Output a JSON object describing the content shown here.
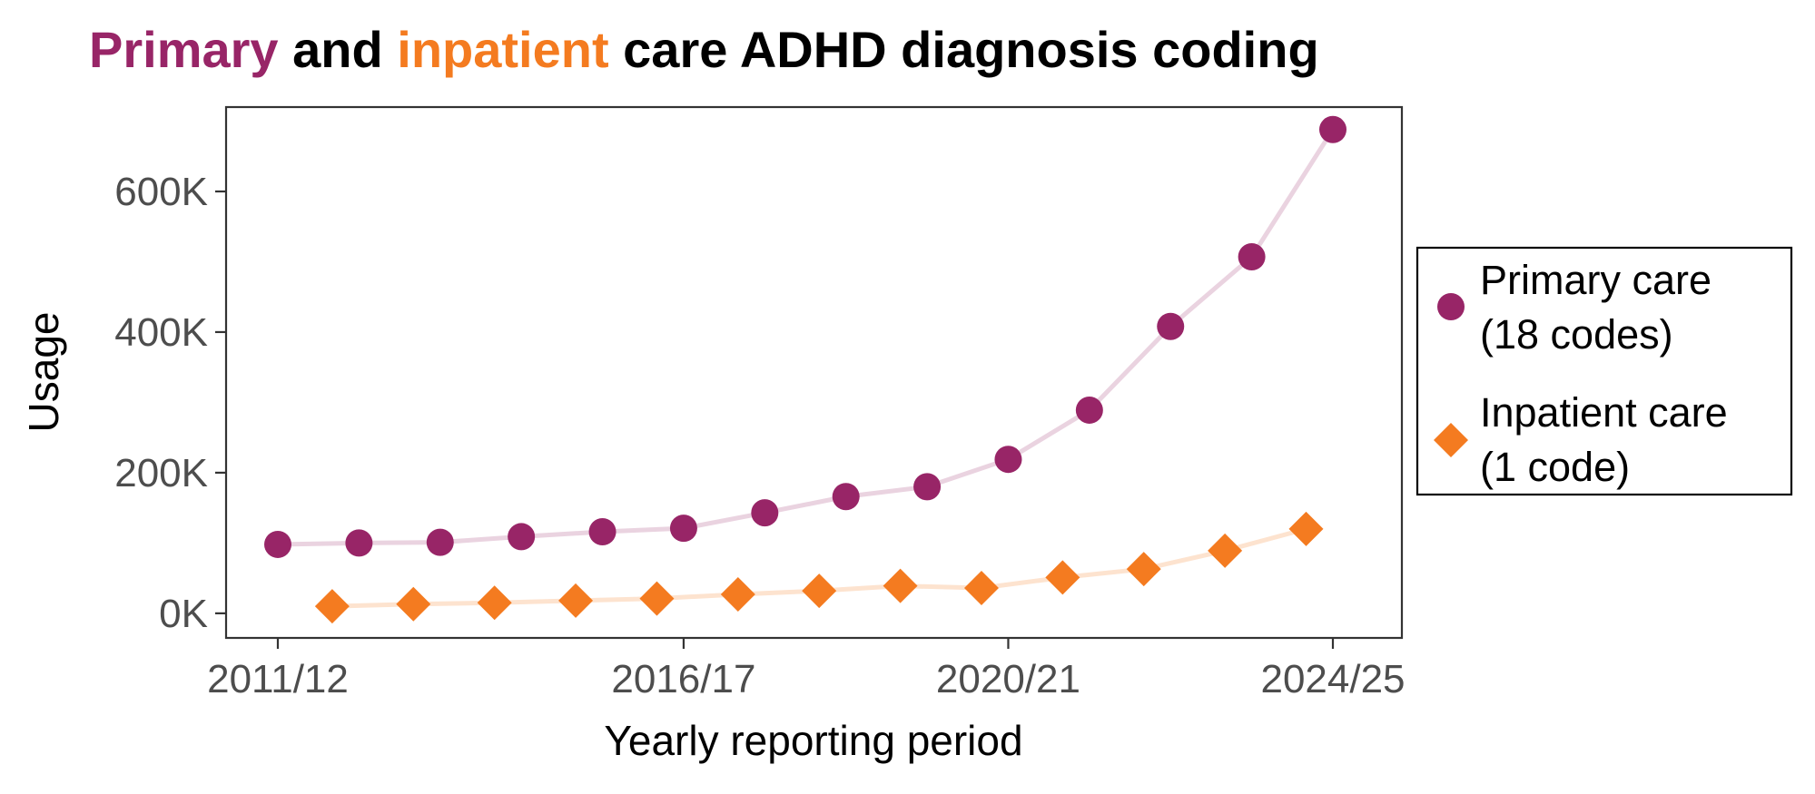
{
  "chart_data": {
    "type": "line",
    "title_parts": [
      {
        "text": "Primary",
        "color": "#982567"
      },
      {
        "text": " and ",
        "color": "#000000"
      },
      {
        "text": "inpatient",
        "color": "#F47B20"
      },
      {
        "text": " care ADHD diagnosis coding",
        "color": "#000000"
      }
    ],
    "xlabel": "Yearly reporting period",
    "ylabel": "Usage",
    "x_ticks": [
      "2011/12",
      "2016/17",
      "2020/21",
      "2024/25"
    ],
    "y_ticks": [
      "0K",
      "200K",
      "400K",
      "600K"
    ],
    "y_tick_values": [
      0,
      200000,
      400000,
      600000
    ],
    "ylim": [
      -35000,
      720000
    ],
    "grid": false,
    "legend_position": "right",
    "series": [
      {
        "name": "Primary care\n(18 codes)",
        "legend_lines": [
          "Primary care",
          "(18 codes)"
        ],
        "marker": "circle",
        "color": "#982567",
        "line_color": "#EAD3E0",
        "x": [
          2011,
          2012,
          2013,
          2014,
          2015,
          2016,
          2017,
          2018,
          2019,
          2020,
          2021,
          2022,
          2023,
          2024
        ],
        "values": [
          98000,
          100000,
          101000,
          109000,
          116000,
          121000,
          143000,
          166000,
          180000,
          219000,
          289000,
          408000,
          507000,
          688000
        ]
      },
      {
        "name": "Inpatient care\n(1 code)",
        "legend_lines": [
          "Inpatient care",
          "(1 code)"
        ],
        "marker": "diamond",
        "color": "#F47B20",
        "line_color": "#FDE3CF",
        "x": [
          2011.67,
          2012.67,
          2013.67,
          2014.67,
          2015.67,
          2016.67,
          2017.67,
          2018.67,
          2019.67,
          2020.67,
          2021.67,
          2022.67,
          2023.67
        ],
        "values": [
          10000,
          13000,
          15000,
          18000,
          21000,
          27000,
          32000,
          39000,
          36000,
          51000,
          63000,
          89000,
          120000
        ]
      }
    ]
  }
}
